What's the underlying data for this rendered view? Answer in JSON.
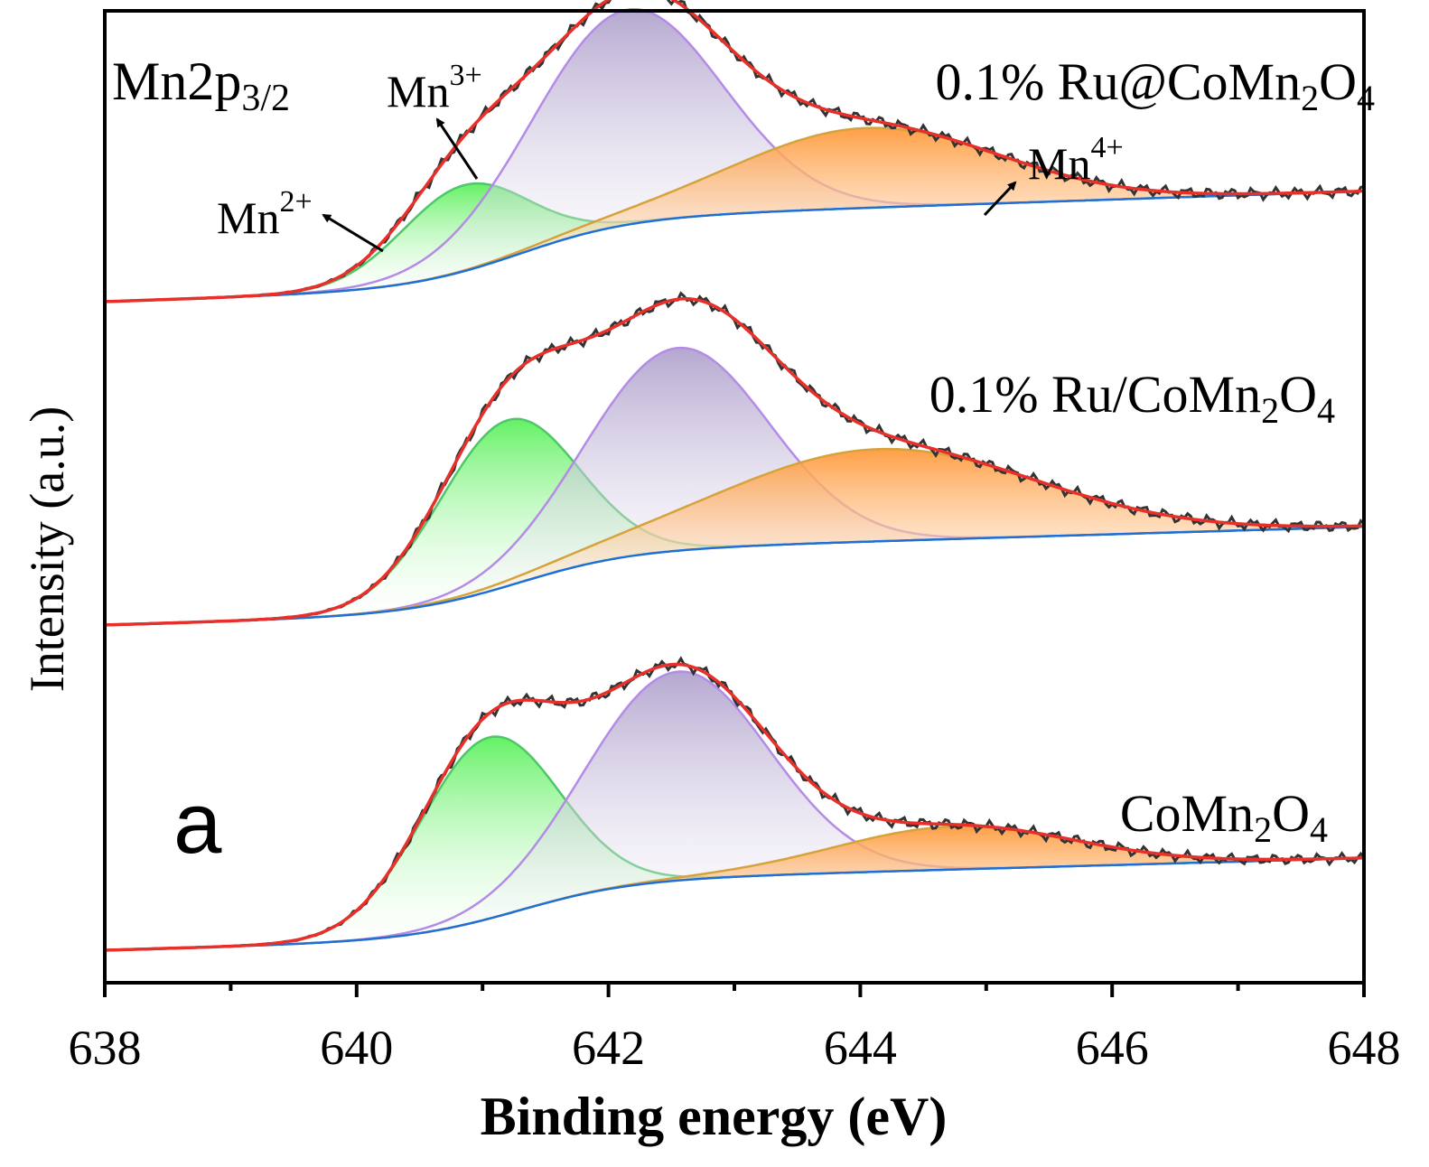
{
  "chart_data": {
    "type": "line",
    "title": "Mn2p",
    "title_sub": "3/2",
    "panel_letter": "a",
    "xlabel": "Binding energy (eV)",
    "ylabel": "Intensity (a.u.)",
    "xlim": [
      638,
      648
    ],
    "x_major_ticks": [
      638,
      640,
      642,
      644,
      646,
      648
    ],
    "x_tick_labels": [
      "638",
      "640",
      "642",
      "644",
      "646",
      "648"
    ],
    "x_minor_ticks": [
      639,
      641,
      643,
      645,
      647
    ],
    "colors": {
      "raw": "#333333",
      "fit": "#e8302a",
      "background": "#1f6fd6",
      "mn2": "#4ec76a",
      "mn2_fill": "#5cf05c",
      "mn3": "#b48be6",
      "mn3_fill": "#a898c8",
      "mn4": "#d6a23c",
      "mn4_fill": "#ff9a3c"
    },
    "peak_labels": [
      {
        "base": "Mn",
        "sup": "2+",
        "name": "mn2-peak-label"
      },
      {
        "base": "Mn",
        "sup": "3+",
        "name": "mn3-peak-label"
      },
      {
        "base": "Mn",
        "sup": "4+",
        "name": "mn4-peak-label"
      }
    ],
    "samples": [
      {
        "name": "ru-at-comn2o4",
        "label_parts": [
          "0.1% Ru@CoMn",
          "2",
          "O",
          "4"
        ],
        "bg_start": 0.0,
        "bg_end": 0.36,
        "bg_center": 641.3,
        "bg_width": 0.45,
        "components": [
          {
            "name": "Mn2+",
            "center": 640.85,
            "amplitude": 0.28,
            "sigma": 0.5
          },
          {
            "name": "Mn3+",
            "center": 642.15,
            "amplitude": 0.7,
            "sigma": 0.75
          },
          {
            "name": "Mn4+",
            "center": 644.05,
            "amplitude": 0.26,
            "sigma": 1.05
          }
        ]
      },
      {
        "name": "ru-on-comn2o4",
        "label_parts": [
          "0.1% Ru/CoMn",
          "2",
          "O",
          "4"
        ],
        "bg_start": 0.0,
        "bg_end": 0.32,
        "bg_center": 641.3,
        "bg_width": 0.45,
        "components": [
          {
            "name": "Mn2+",
            "center": 641.2,
            "amplitude": 0.54,
            "sigma": 0.55
          },
          {
            "name": "Mn3+",
            "center": 642.55,
            "amplitude": 0.66,
            "sigma": 0.72
          },
          {
            "name": "Mn4+",
            "center": 644.15,
            "amplitude": 0.3,
            "sigma": 1.25
          }
        ]
      },
      {
        "name": "comn2o4",
        "label_parts": [
          "CoMn",
          "2",
          "O",
          "4"
        ],
        "bg_start": 0.0,
        "bg_end": 0.3,
        "bg_center": 641.3,
        "bg_width": 0.45,
        "components": [
          {
            "name": "Mn2+",
            "center": 641.05,
            "amplitude": 0.59,
            "sigma": 0.55
          },
          {
            "name": "Mn3+",
            "center": 642.55,
            "amplitude": 0.68,
            "sigma": 0.72
          },
          {
            "name": "Mn4+",
            "center": 644.75,
            "amplitude": 0.14,
            "sigma": 0.95
          }
        ]
      }
    ],
    "legend": "none",
    "grid": false
  }
}
